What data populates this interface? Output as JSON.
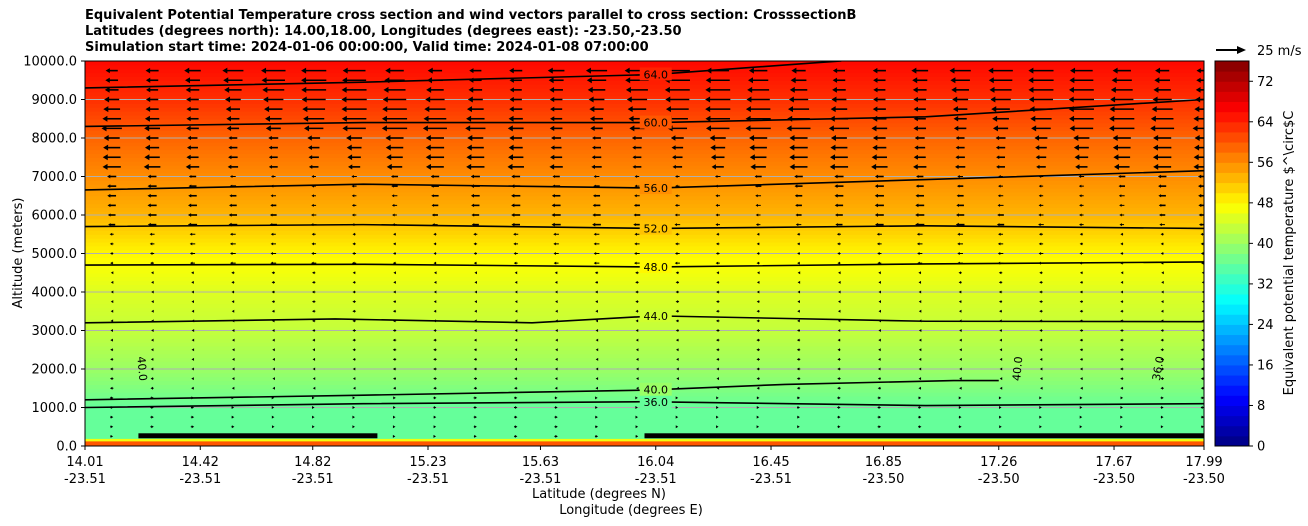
{
  "chart_data": {
    "type": "contourf-cross-section",
    "title_lines": [
      "Equivalent Potential Temperature cross section and wind vectors parallel to cross section: CrosssectionB",
      "Latitudes (degrees north): 14.00,18.00, Longitudes (degrees east): -23.50,-23.50",
      "Simulation start time: 2024-01-06 00:00:00, Valid time: 2024-01-08 07:00:00"
    ],
    "ylabel": "Altitude (meters)",
    "xlabel": "Latitude (degrees N)",
    "xlabel2": "Longitude (degrees E)",
    "ylim": [
      0,
      10000
    ],
    "y_ticks": [
      "0.0",
      "1000.0",
      "2000.0",
      "3000.0",
      "4000.0",
      "5000.0",
      "6000.0",
      "7000.0",
      "8000.0",
      "9000.0",
      "10000.0"
    ],
    "y_tick_values": [
      0,
      1000,
      2000,
      3000,
      4000,
      5000,
      6000,
      7000,
      8000,
      9000,
      10000
    ],
    "xlim": [
      14.01,
      17.99
    ],
    "x_tick_lat": [
      "14.01",
      "14.42",
      "14.82",
      "15.23",
      "15.63",
      "16.04",
      "16.45",
      "16.85",
      "17.26",
      "17.67",
      "17.99"
    ],
    "x_tick_lon": [
      "-23.51",
      "-23.51",
      "-23.51",
      "-23.51",
      "-23.51",
      "-23.51",
      "-23.51",
      "-23.50",
      "-23.50",
      "-23.50",
      "-23.50"
    ],
    "x_tick_values": [
      14.01,
      14.42,
      14.82,
      15.23,
      15.63,
      16.04,
      16.45,
      16.85,
      17.26,
      17.67,
      17.99
    ],
    "colorbar": {
      "label": "Equivalent potential temperature $^\\circ$C",
      "range": [
        0,
        76
      ],
      "ticks": [
        "0",
        "8",
        "16",
        "24",
        "32",
        "40",
        "48",
        "56",
        "64",
        "72"
      ],
      "tick_values": [
        0,
        8,
        16,
        24,
        32,
        40,
        48,
        56,
        64,
        72
      ]
    },
    "quiver_key": {
      "label": "25 m/s",
      "speed": 25
    },
    "theta_e_profile": [
      {
        "alt": 0,
        "value": 62
      },
      {
        "alt": 250,
        "value": 36
      },
      {
        "alt": 1000,
        "value": 36
      },
      {
        "alt": 2000,
        "value": 40
      },
      {
        "alt": 3000,
        "value": 43
      },
      {
        "alt": 4000,
        "value": 45
      },
      {
        "alt": 5000,
        "value": 48
      },
      {
        "alt": 6000,
        "value": 53
      },
      {
        "alt": 7000,
        "value": 56
      },
      {
        "alt": 8000,
        "value": 59
      },
      {
        "alt": 9000,
        "value": 63
      },
      {
        "alt": 10000,
        "value": 66
      }
    ],
    "contour_lines": [
      {
        "label": "36.0",
        "value": 36,
        "points": [
          [
            14.01,
            1000
          ],
          [
            15.0,
            1100
          ],
          [
            16.0,
            1150
          ],
          [
            17.0,
            1050
          ],
          [
            17.99,
            1100
          ]
        ]
      },
      {
        "label": "40.0",
        "value": 40,
        "points": [
          [
            14.01,
            1200
          ],
          [
            15.0,
            1320
          ],
          [
            16.0,
            1450
          ],
          [
            16.5,
            1600
          ],
          [
            17.1,
            1700
          ],
          [
            17.26,
            1700
          ]
        ]
      },
      {
        "label": "44.0",
        "value": 44,
        "points": [
          [
            14.01,
            3200
          ],
          [
            14.9,
            3300
          ],
          [
            15.6,
            3200
          ],
          [
            16.04,
            3380
          ],
          [
            17.0,
            3240
          ],
          [
            17.99,
            3230
          ]
        ]
      },
      {
        "label": "48.0",
        "value": 48,
        "points": [
          [
            14.01,
            4700
          ],
          [
            15.0,
            4720
          ],
          [
            16.04,
            4650
          ],
          [
            17.0,
            4730
          ],
          [
            17.99,
            4780
          ]
        ]
      },
      {
        "label": "52.0",
        "value": 52,
        "points": [
          [
            14.01,
            5700
          ],
          [
            15.0,
            5750
          ],
          [
            16.04,
            5650
          ],
          [
            17.0,
            5720
          ],
          [
            17.99,
            5650
          ]
        ]
      },
      {
        "label": "56.0",
        "value": 56,
        "points": [
          [
            14.01,
            6650
          ],
          [
            15.0,
            6800
          ],
          [
            16.04,
            6700
          ],
          [
            17.0,
            6920
          ],
          [
            17.99,
            7150
          ]
        ]
      },
      {
        "label": "60.0",
        "value": 60,
        "points": [
          [
            14.01,
            8300
          ],
          [
            15.0,
            8400
          ],
          [
            16.04,
            8400
          ],
          [
            17.0,
            8550
          ],
          [
            17.99,
            9000
          ]
        ]
      },
      {
        "label": "64.0",
        "value": 64,
        "points": [
          [
            14.01,
            9300
          ],
          [
            15.0,
            9450
          ],
          [
            16.04,
            9650
          ],
          [
            16.6,
            9950
          ],
          [
            16.7,
            10000
          ]
        ]
      }
    ],
    "inline_labels": [
      {
        "text": "40.0",
        "lat": 14.2,
        "alt": 2000,
        "rotate": 85
      },
      {
        "text": "40.0",
        "lat": 17.34,
        "alt": 2000,
        "rotate": -85
      },
      {
        "text": "36.0",
        "lat": 17.84,
        "alt": 2000,
        "rotate": -80
      }
    ]
  }
}
